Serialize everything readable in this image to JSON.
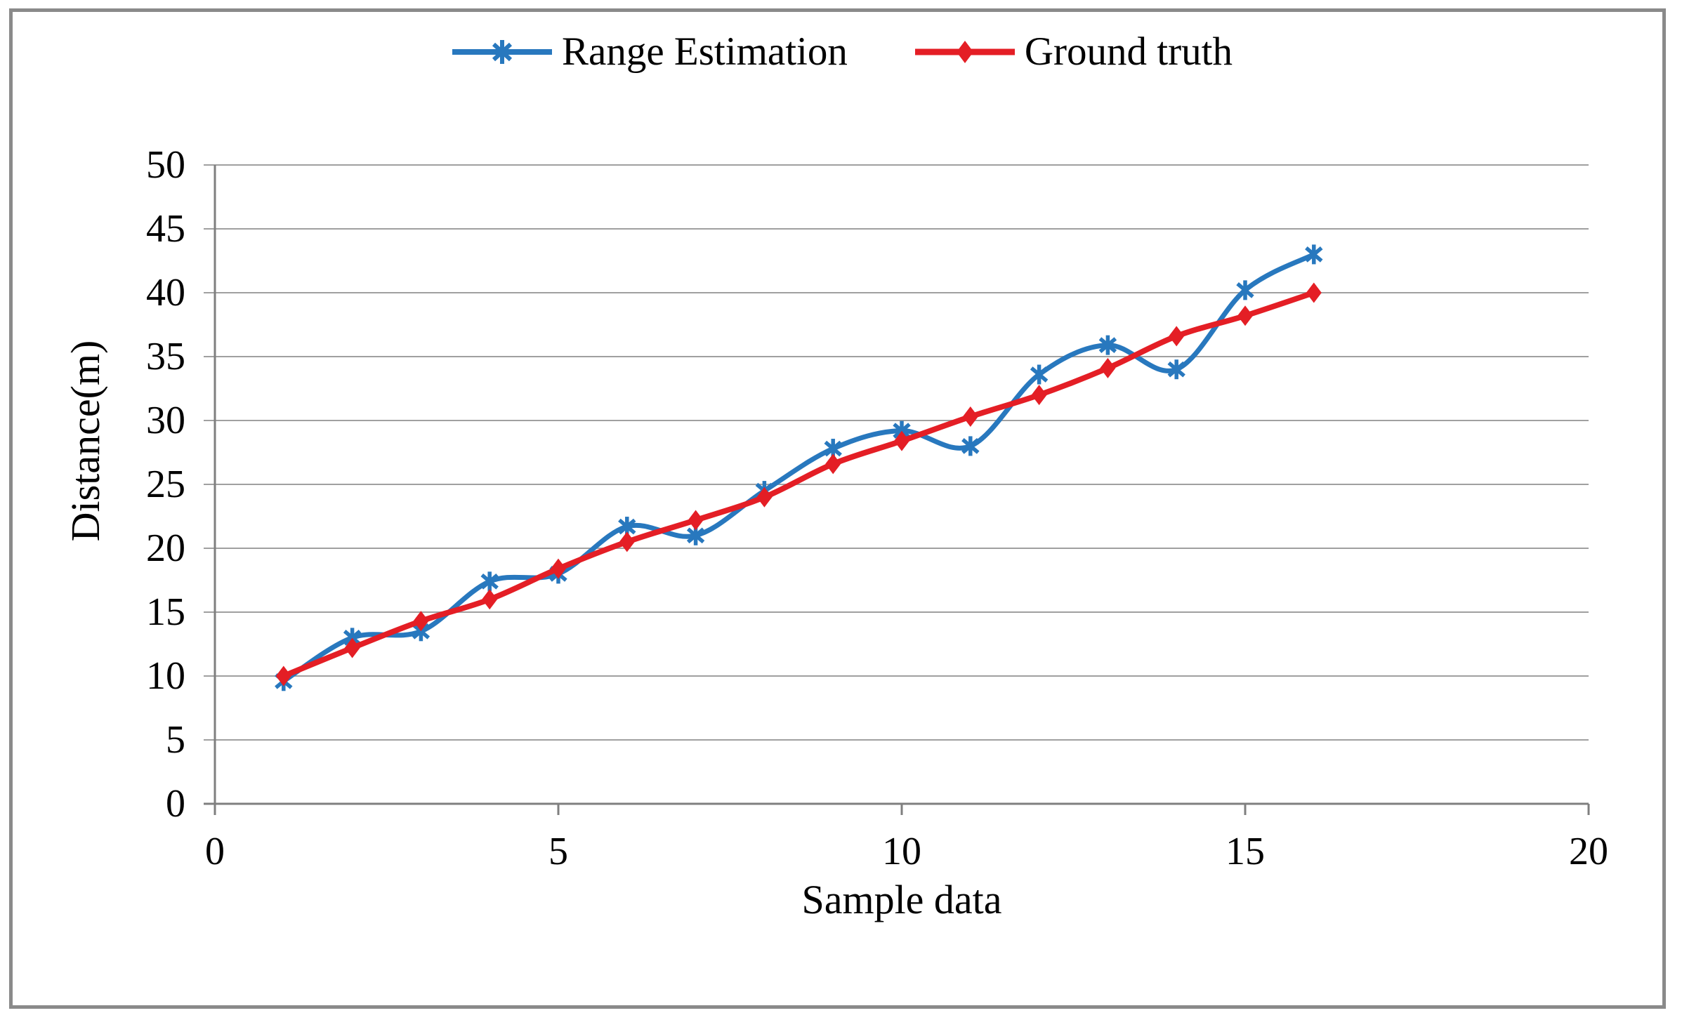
{
  "page": {
    "background": "#ffffff",
    "frame_color": "#8a8a8a"
  },
  "legend": {
    "position": "top-center",
    "items": [
      {
        "label": "Range Estimation",
        "marker": "asterisk-icon",
        "color": "#2878be"
      },
      {
        "label": "Ground truth",
        "marker": "diamond-icon",
        "color": "#e41e25"
      }
    ]
  },
  "chart_data": {
    "type": "line",
    "title": "",
    "xlabel": "Sample data",
    "ylabel": "Distance(m)",
    "x": [
      1,
      2,
      3,
      4,
      5,
      6,
      7,
      8,
      9,
      10,
      11,
      12,
      13,
      14,
      15,
      16
    ],
    "series": [
      {
        "name": "Range Estimation",
        "color": "#2878be",
        "marker": "asterisk",
        "smooth": true,
        "line_width": 7,
        "values": [
          9.6,
          13.0,
          13.5,
          17.4,
          18.0,
          21.7,
          21.0,
          24.5,
          27.8,
          29.2,
          28.0,
          33.6,
          35.9,
          34.0,
          40.2,
          43.0
        ]
      },
      {
        "name": "Ground truth",
        "color": "#e41e25",
        "marker": "diamond",
        "smooth": true,
        "line_width": 8,
        "values": [
          10.0,
          12.2,
          14.3,
          16.0,
          18.4,
          20.5,
          22.2,
          24.0,
          26.6,
          28.4,
          30.3,
          32.0,
          34.1,
          36.6,
          38.2,
          40.0
        ]
      }
    ],
    "xlim": [
      0,
      20
    ],
    "ylim": [
      0,
      50
    ],
    "x_ticks": [
      0,
      5,
      10,
      15,
      20
    ],
    "y_ticks": [
      0,
      5,
      10,
      15,
      20,
      25,
      30,
      35,
      40,
      45,
      50
    ],
    "grid": "horizontal",
    "grid_color": "#a0a0a0",
    "axis_color": "#7f7f7f",
    "legend_position": "top"
  }
}
